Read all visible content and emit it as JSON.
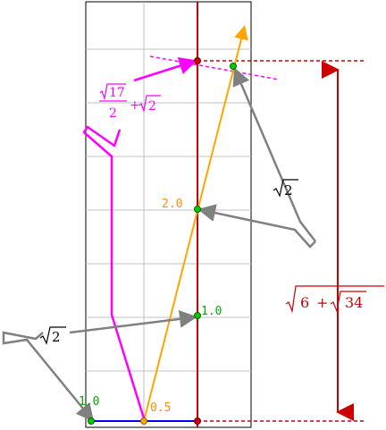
{
  "labels": {
    "pt_bottom_left": "1.0",
    "pt_bottom_mid": "0.5",
    "pt_mid_1": "1.0",
    "pt_mid_2": "2.0"
  },
  "annotations": {
    "left_sqrt2": "2",
    "right_sqrt2": "2",
    "magenta_frac_num": "17",
    "magenta_frac_den": "2",
    "magenta_plus": "+",
    "magenta_sqrt": "2",
    "red_sqrt6": "6",
    "red_plus": "+",
    "red_sqrt34": "34"
  },
  "colors": {
    "grid": "#c0c0c0",
    "frame": "#000000",
    "red": "#cc0000",
    "magenta": "#ff00ff",
    "orange": "#ffa500",
    "blue": "#0000ff",
    "green": "#00cc00",
    "gray": "#808080"
  }
}
